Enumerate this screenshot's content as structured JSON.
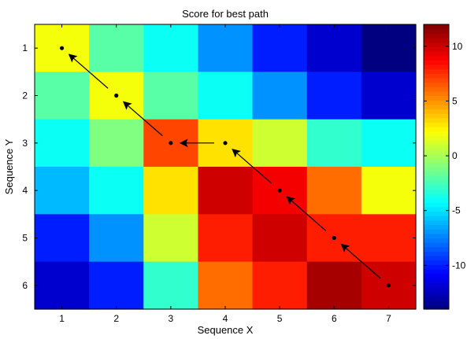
{
  "chart_data": {
    "type": "heatmap",
    "title": "Score for best path",
    "xlabel": "Sequence X",
    "ylabel": "Sequence Y",
    "x_categories": [
      "1",
      "2",
      "3",
      "4",
      "5",
      "6",
      "7"
    ],
    "y_categories": [
      "1",
      "2",
      "3",
      "4",
      "5",
      "6"
    ],
    "values": [
      [
        2,
        -2,
        -4,
        -7,
        -10,
        -12,
        -14
      ],
      [
        -2,
        2,
        -2,
        -4,
        -7,
        -10,
        -12
      ],
      [
        -4,
        -1,
        7,
        3,
        1,
        -3,
        -4
      ],
      [
        -6,
        -4,
        3,
        10,
        9,
        6,
        2
      ],
      [
        -10,
        -7,
        1,
        8,
        10,
        8,
        8
      ],
      [
        -12,
        -10,
        -3,
        6,
        8,
        11,
        10
      ]
    ],
    "color_range": [
      -14,
      12
    ],
    "colormap": "jet",
    "colorbar_ticks": [
      -10,
      -5,
      0,
      5,
      10
    ],
    "path": [
      {
        "x": 1,
        "y": 1
      },
      {
        "x": 2,
        "y": 2
      },
      {
        "x": 3,
        "y": 3
      },
      {
        "x": 4,
        "y": 3
      },
      {
        "x": 5,
        "y": 4
      },
      {
        "x": 6,
        "y": 5
      },
      {
        "x": 7,
        "y": 6
      }
    ],
    "arrow_direction": "from later path point back to previous point"
  }
}
